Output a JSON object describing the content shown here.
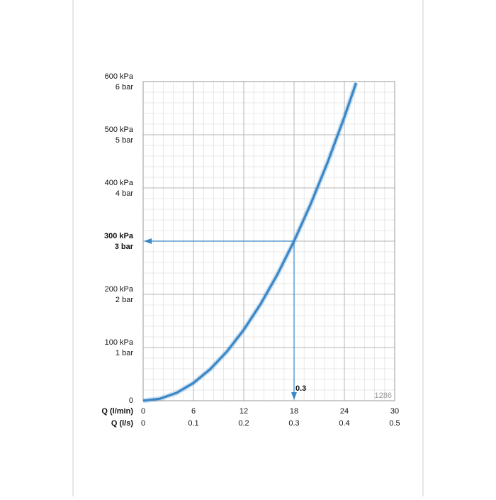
{
  "chart_data": {
    "type": "line",
    "x_label": "Q (l/min)",
    "x2_label": "Q (l/s)",
    "x": [
      0,
      2,
      4,
      6,
      8,
      10,
      12,
      14,
      16,
      18,
      20,
      22,
      24,
      25.4
    ],
    "series": [
      {
        "color": "#3a87c8",
        "values": [
          0,
          3.7,
          14.8,
          33.3,
          59.3,
          92.6,
          133.3,
          181.5,
          237,
          300,
          370.4,
          448.1,
          533.3,
          597.4
        ]
      }
    ],
    "xlim": [
      0,
      30
    ],
    "xticks": [
      0,
      6,
      12,
      18,
      24,
      30
    ],
    "x2lim": [
      0,
      0.5
    ],
    "x2ticks": [
      0,
      0.1,
      0.2,
      0.3,
      0.4,
      0.5
    ],
    "ylim": [
      0,
      600
    ],
    "yticks": [
      0,
      {
        "value": 100,
        "label": "100 kPa"
      },
      {
        "value": 200,
        "label": "200 kPa"
      },
      {
        "value": 300,
        "label": "300 kPa"
      },
      {
        "value": 400,
        "label": "400 kPa"
      },
      {
        "value": 500,
        "label": "500 kPa"
      },
      {
        "value": 600,
        "label": "600 kPa"
      }
    ],
    "yticks_bar": [
      {
        "value": 100,
        "label": "1 bar"
      },
      {
        "value": 200,
        "label": "2 bar"
      },
      {
        "value": 300,
        "label": "3 bar"
      },
      {
        "value": 400,
        "label": "4 bar"
      },
      {
        "value": 500,
        "label": "5 bar"
      },
      {
        "value": 600,
        "label": "6 bar"
      }
    ],
    "grid": true,
    "minor_grid": {
      "x": 1.2,
      "y": 20
    },
    "highlight": {
      "x": 18,
      "y": 300,
      "label": "0.3"
    },
    "code": "1286"
  }
}
